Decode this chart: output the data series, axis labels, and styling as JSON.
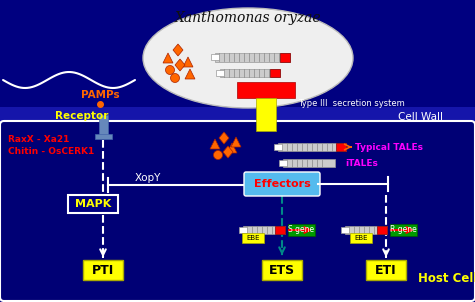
{
  "bg_dark": "#000080",
  "ellipse_bg": "#EFEFEF",
  "title": "Xanthomonas oryzae",
  "cell_wall_label": "Cell Wall",
  "host_cell_label": "Host Cell",
  "pamps_label": "PAMPs",
  "receptor_label": "Receptor",
  "type3_label": "Type III  secretion system",
  "raxx_label": "RaxX - Xa21",
  "chitin_label": "Chitin - OsCERK1",
  "xopy_label": "XopY",
  "effectors_label": "Effectors",
  "typical_tales_label": "Typical TALEs",
  "itales_label": "iTALEs",
  "mapk_label": "MAPK",
  "ebe_label": "EBE",
  "s_gene_label": "S gene",
  "r_gene_label": "R gene",
  "yellow": "#FFFF00",
  "red": "#FF0000",
  "orange": "#FF6600",
  "magenta": "#FF00FF",
  "white": "#FFFFFF",
  "green": "#009900",
  "light_blue": "#55AAFF",
  "receptor_blue": "#6688BB",
  "dark_navy": "#000060"
}
